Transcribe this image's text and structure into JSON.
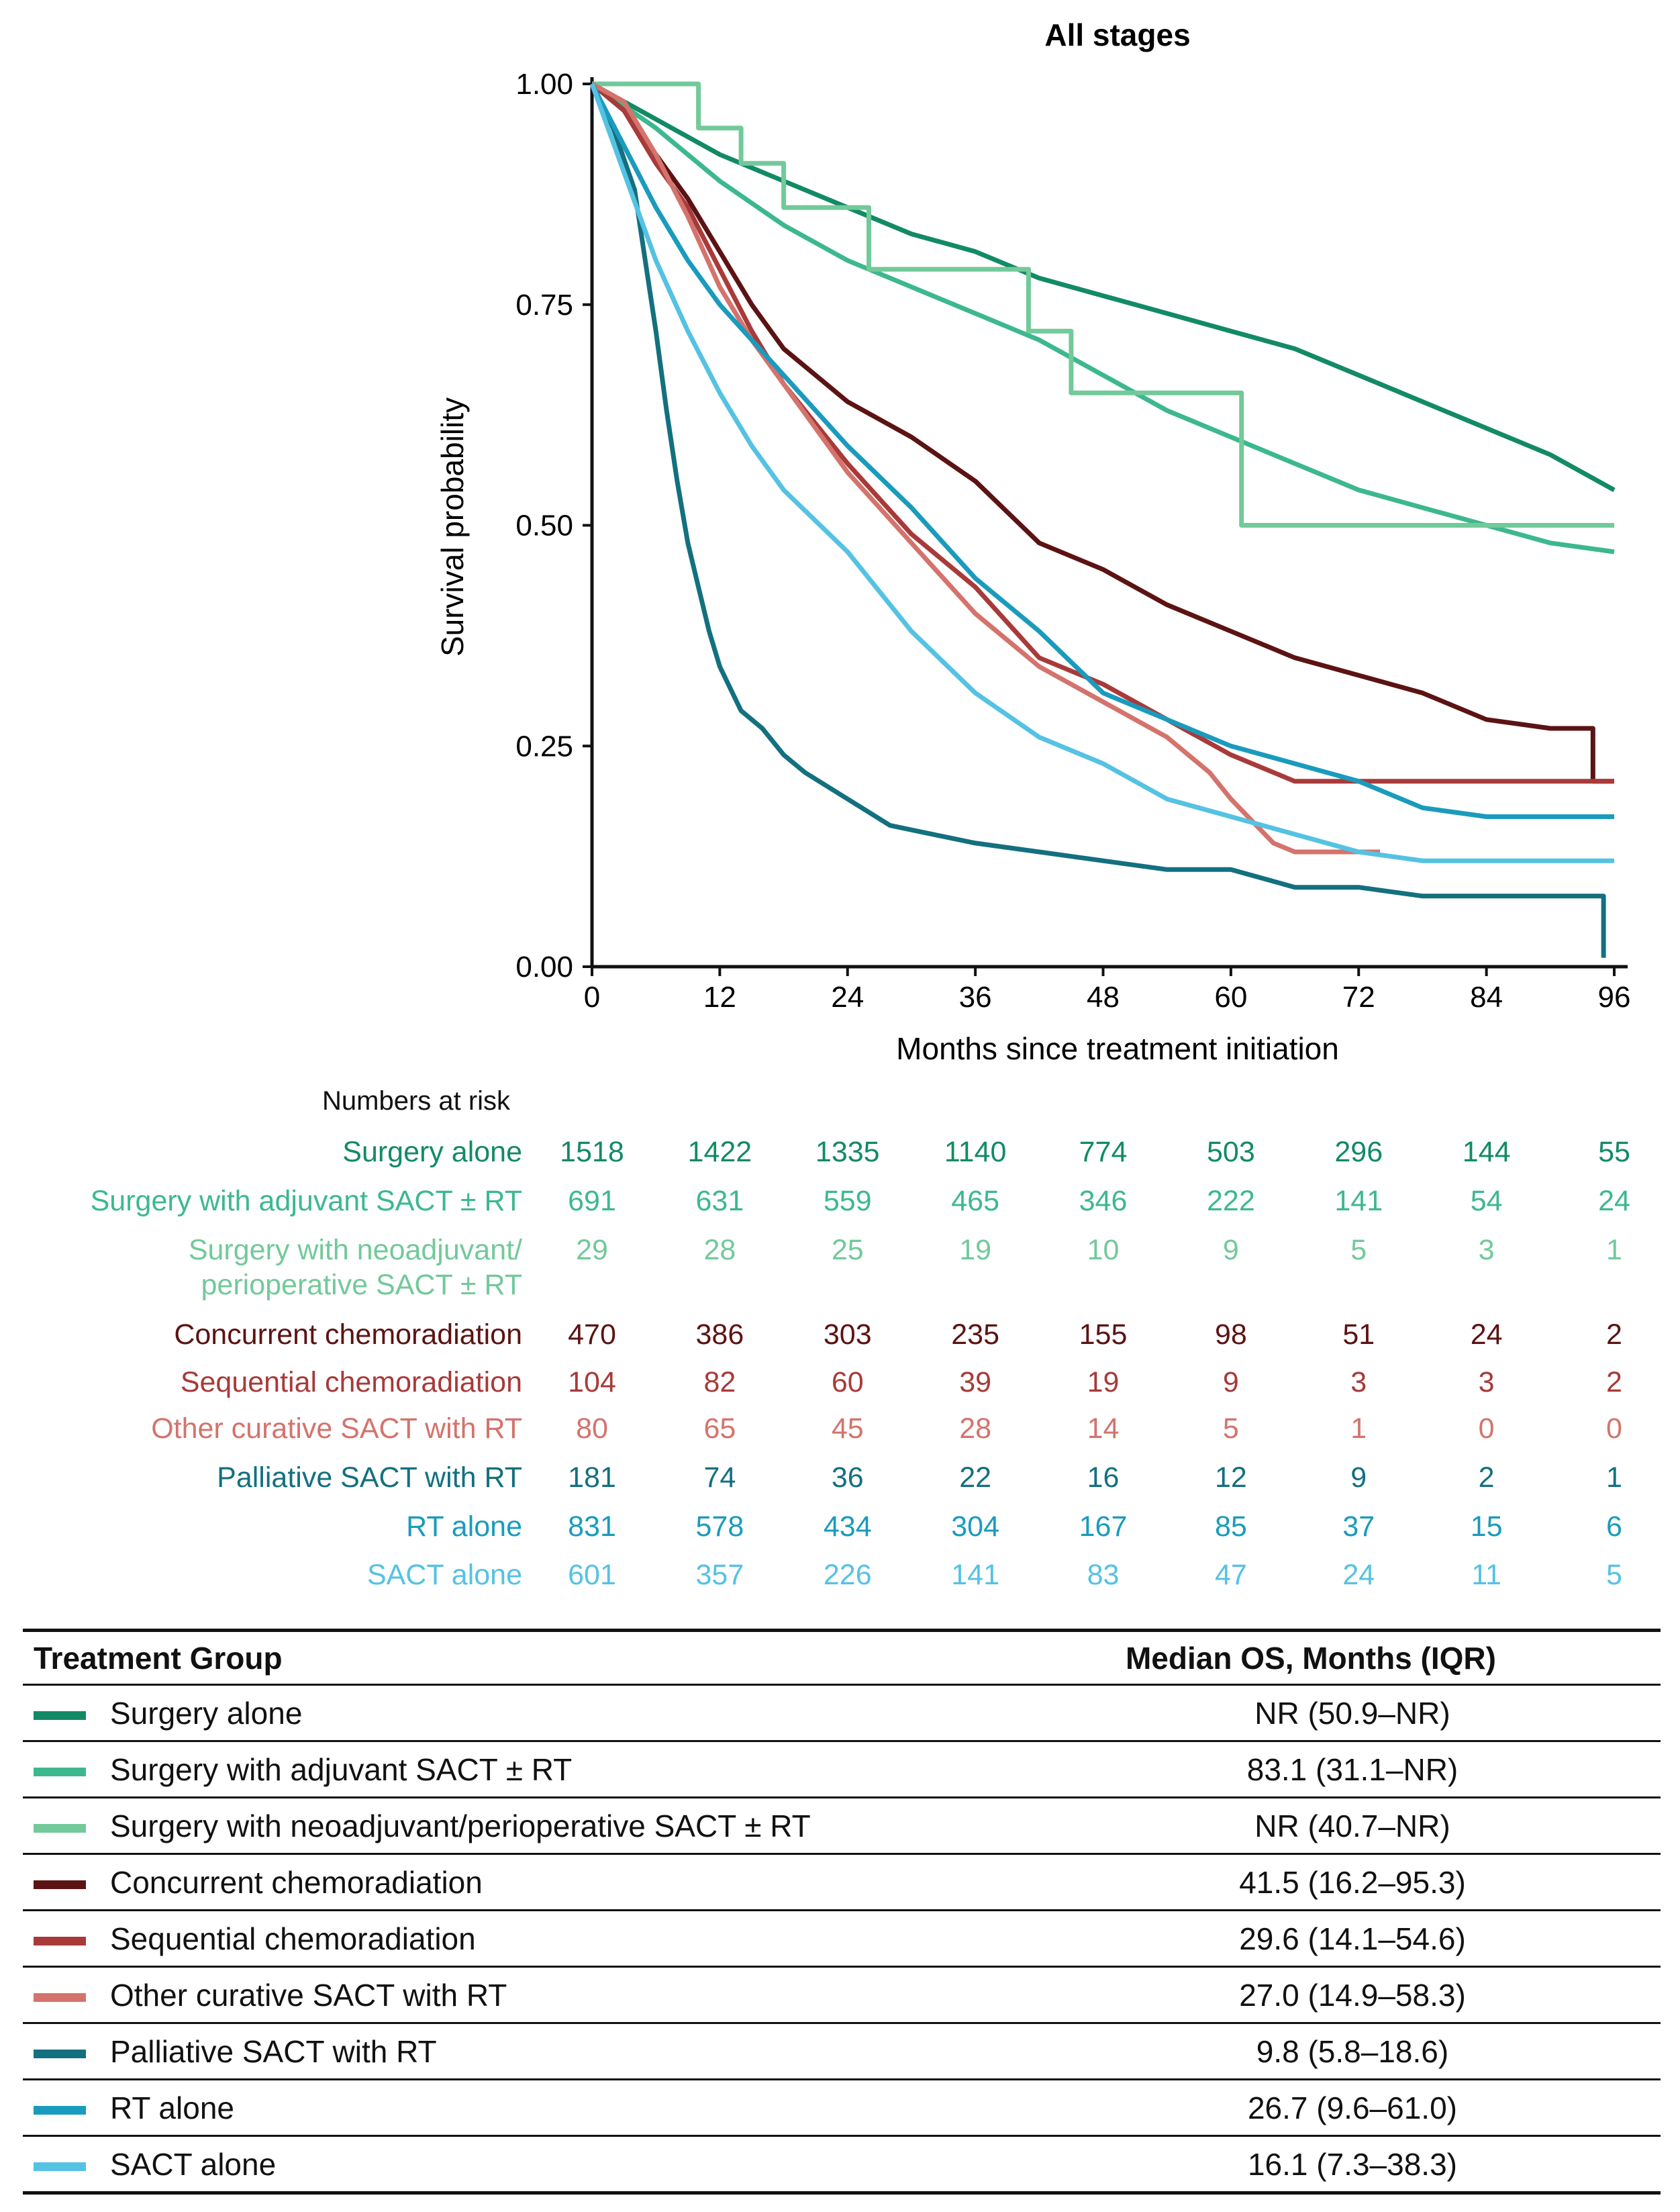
{
  "chart_data": {
    "type": "line",
    "title": "All stages",
    "xlabel": "Months since treatment initiation",
    "ylabel": "Survival probability",
    "xlim": [
      0,
      96
    ],
    "ylim": [
      0,
      1
    ],
    "x_ticks": [
      "0",
      "12",
      "24",
      "36",
      "48",
      "60",
      "72",
      "84",
      "96"
    ],
    "y_ticks": [
      "0.00",
      "0.25",
      "0.50",
      "0.75",
      "1.00"
    ],
    "series": [
      {
        "name": "Surgery alone",
        "color": "#138a66",
        "step": false,
        "points": [
          [
            0,
            1
          ],
          [
            6,
            0.96
          ],
          [
            12,
            0.92
          ],
          [
            18,
            0.89
          ],
          [
            24,
            0.86
          ],
          [
            30,
            0.83
          ],
          [
            36,
            0.81
          ],
          [
            42,
            0.78
          ],
          [
            48,
            0.76
          ],
          [
            54,
            0.74
          ],
          [
            60,
            0.72
          ],
          [
            66,
            0.7
          ],
          [
            72,
            0.67
          ],
          [
            78,
            0.64
          ],
          [
            84,
            0.61
          ],
          [
            90,
            0.58
          ],
          [
            96,
            0.54
          ]
        ]
      },
      {
        "name": "Surgery with adjuvant SACT ± RT",
        "color": "#3db88e",
        "step": false,
        "points": [
          [
            0,
            1
          ],
          [
            6,
            0.95
          ],
          [
            12,
            0.89
          ],
          [
            18,
            0.84
          ],
          [
            24,
            0.8
          ],
          [
            30,
            0.77
          ],
          [
            36,
            0.74
          ],
          [
            42,
            0.71
          ],
          [
            48,
            0.67
          ],
          [
            54,
            0.63
          ],
          [
            60,
            0.6
          ],
          [
            66,
            0.57
          ],
          [
            72,
            0.54
          ],
          [
            78,
            0.52
          ],
          [
            84,
            0.5
          ],
          [
            90,
            0.48
          ],
          [
            96,
            0.47
          ]
        ]
      },
      {
        "name": "Surgery with neoadjuvant/perioperative SACT ± RT",
        "color": "#72c99a",
        "step": true,
        "points": [
          [
            0,
            1
          ],
          [
            10,
            1
          ],
          [
            10,
            0.95
          ],
          [
            14,
            0.95
          ],
          [
            14,
            0.91
          ],
          [
            18,
            0.91
          ],
          [
            18,
            0.86
          ],
          [
            26,
            0.86
          ],
          [
            26,
            0.79
          ],
          [
            41,
            0.79
          ],
          [
            41,
            0.72
          ],
          [
            45,
            0.72
          ],
          [
            45,
            0.65
          ],
          [
            61,
            0.65
          ],
          [
            61,
            0.5
          ],
          [
            96,
            0.5
          ]
        ]
      },
      {
        "name": "Concurrent chemoradiation",
        "color": "#5c1313",
        "step": false,
        "points": [
          [
            0,
            1
          ],
          [
            3,
            0.97
          ],
          [
            6,
            0.92
          ],
          [
            9,
            0.87
          ],
          [
            12,
            0.81
          ],
          [
            15,
            0.75
          ],
          [
            18,
            0.7
          ],
          [
            24,
            0.64
          ],
          [
            30,
            0.6
          ],
          [
            36,
            0.55
          ],
          [
            42,
            0.48
          ],
          [
            48,
            0.45
          ],
          [
            54,
            0.41
          ],
          [
            60,
            0.38
          ],
          [
            66,
            0.35
          ],
          [
            72,
            0.33
          ],
          [
            78,
            0.31
          ],
          [
            84,
            0.28
          ],
          [
            90,
            0.27
          ],
          [
            94,
            0.27
          ],
          [
            94,
            0.21
          ],
          [
            96,
            0.21
          ]
        ]
      },
      {
        "name": "Sequential chemoradiation",
        "color": "#a83a3a",
        "step": false,
        "points": [
          [
            0,
            1
          ],
          [
            3,
            0.97
          ],
          [
            6,
            0.91
          ],
          [
            9,
            0.86
          ],
          [
            12,
            0.79
          ],
          [
            15,
            0.72
          ],
          [
            18,
            0.66
          ],
          [
            24,
            0.57
          ],
          [
            30,
            0.49
          ],
          [
            36,
            0.43
          ],
          [
            42,
            0.35
          ],
          [
            48,
            0.32
          ],
          [
            54,
            0.28
          ],
          [
            60,
            0.24
          ],
          [
            66,
            0.21
          ],
          [
            72,
            0.21
          ],
          [
            96,
            0.21
          ]
        ]
      },
      {
        "name": "Other curative SACT with RT",
        "color": "#d4736c",
        "step": false,
        "points": [
          [
            0,
            1
          ],
          [
            3,
            0.98
          ],
          [
            6,
            0.92
          ],
          [
            9,
            0.85
          ],
          [
            12,
            0.77
          ],
          [
            15,
            0.71
          ],
          [
            18,
            0.66
          ],
          [
            24,
            0.56
          ],
          [
            30,
            0.48
          ],
          [
            36,
            0.4
          ],
          [
            42,
            0.34
          ],
          [
            48,
            0.3
          ],
          [
            54,
            0.26
          ],
          [
            58,
            0.22
          ],
          [
            60,
            0.19
          ],
          [
            64,
            0.14
          ],
          [
            66,
            0.13
          ],
          [
            74,
            0.13
          ]
        ]
      },
      {
        "name": "Palliative SACT with RT",
        "color": "#13707f",
        "step": false,
        "points": [
          [
            0,
            1
          ],
          [
            2,
            0.95
          ],
          [
            4,
            0.88
          ],
          [
            5,
            0.8
          ],
          [
            6,
            0.72
          ],
          [
            7,
            0.63
          ],
          [
            8,
            0.55
          ],
          [
            9,
            0.48
          ],
          [
            10,
            0.43
          ],
          [
            11,
            0.38
          ],
          [
            12,
            0.34
          ],
          [
            14,
            0.29
          ],
          [
            16,
            0.27
          ],
          [
            18,
            0.24
          ],
          [
            20,
            0.22
          ],
          [
            24,
            0.19
          ],
          [
            28,
            0.16
          ],
          [
            32,
            0.15
          ],
          [
            36,
            0.14
          ],
          [
            42,
            0.13
          ],
          [
            48,
            0.12
          ],
          [
            54,
            0.11
          ],
          [
            60,
            0.11
          ],
          [
            66,
            0.09
          ],
          [
            72,
            0.09
          ],
          [
            78,
            0.08
          ],
          [
            84,
            0.08
          ],
          [
            95,
            0.08
          ],
          [
            95,
            0.01
          ]
        ]
      },
      {
        "name": "RT alone",
        "color": "#1a9bbd",
        "step": false,
        "points": [
          [
            0,
            1
          ],
          [
            3,
            0.93
          ],
          [
            6,
            0.86
          ],
          [
            9,
            0.8
          ],
          [
            12,
            0.75
          ],
          [
            15,
            0.71
          ],
          [
            18,
            0.67
          ],
          [
            24,
            0.59
          ],
          [
            30,
            0.52
          ],
          [
            36,
            0.44
          ],
          [
            42,
            0.38
          ],
          [
            48,
            0.31
          ],
          [
            54,
            0.28
          ],
          [
            60,
            0.25
          ],
          [
            66,
            0.23
          ],
          [
            72,
            0.21
          ],
          [
            78,
            0.18
          ],
          [
            84,
            0.17
          ],
          [
            96,
            0.17
          ]
        ]
      },
      {
        "name": "SACT alone",
        "color": "#55c2e3",
        "step": false,
        "points": [
          [
            0,
            1
          ],
          [
            3,
            0.9
          ],
          [
            6,
            0.8
          ],
          [
            9,
            0.72
          ],
          [
            12,
            0.65
          ],
          [
            15,
            0.59
          ],
          [
            18,
            0.54
          ],
          [
            24,
            0.47
          ],
          [
            30,
            0.38
          ],
          [
            36,
            0.31
          ],
          [
            42,
            0.26
          ],
          [
            48,
            0.23
          ],
          [
            54,
            0.19
          ],
          [
            60,
            0.17
          ],
          [
            66,
            0.15
          ],
          [
            72,
            0.13
          ],
          [
            78,
            0.12
          ],
          [
            84,
            0.12
          ],
          [
            96,
            0.12
          ]
        ]
      }
    ]
  },
  "risk_table": {
    "heading": "Numbers at risk",
    "timepoints": [
      "0",
      "12",
      "24",
      "36",
      "48",
      "60",
      "72",
      "84",
      "96"
    ],
    "rows": [
      {
        "label": "Surgery alone",
        "values": [
          "1518",
          "1422",
          "1335",
          "1140",
          "774",
          "503",
          "296",
          "144",
          "55"
        ]
      },
      {
        "label": "Surgery with adjuvant SACT ± RT",
        "values": [
          "691",
          "631",
          "559",
          "465",
          "346",
          "222",
          "141",
          "54",
          "24"
        ]
      },
      {
        "label": "Surgery with neoadjuvant/",
        "label2": "perioperative SACT ± RT",
        "values": [
          "29",
          "28",
          "25",
          "19",
          "10",
          "9",
          "5",
          "3",
          "1"
        ]
      },
      {
        "label": "Concurrent chemoradiation",
        "values": [
          "470",
          "386",
          "303",
          "235",
          "155",
          "98",
          "51",
          "24",
          "2"
        ]
      },
      {
        "label": "Sequential chemoradiation",
        "values": [
          "104",
          "82",
          "60",
          "39",
          "19",
          "9",
          "3",
          "3",
          "2"
        ]
      },
      {
        "label": "Other curative SACT with RT",
        "values": [
          "80",
          "65",
          "45",
          "28",
          "14",
          "5",
          "1",
          "0",
          "0"
        ]
      },
      {
        "label": "Palliative SACT with RT",
        "values": [
          "181",
          "74",
          "36",
          "22",
          "16",
          "12",
          "9",
          "2",
          "1"
        ]
      },
      {
        "label": "RT alone",
        "values": [
          "831",
          "578",
          "434",
          "304",
          "167",
          "85",
          "37",
          "15",
          "6"
        ]
      },
      {
        "label": "SACT alone",
        "values": [
          "601",
          "357",
          "226",
          "141",
          "83",
          "47",
          "24",
          "11",
          "5"
        ]
      }
    ]
  },
  "os_table": {
    "headers": {
      "group": "Treatment Group",
      "median": "Median OS, Months (IQR)"
    },
    "rows": [
      {
        "group": "Surgery alone",
        "median": "NR (50.9–NR)"
      },
      {
        "group": "Surgery with adjuvant SACT ± RT",
        "median": "83.1 (31.1–NR)"
      },
      {
        "group": "Surgery with neoadjuvant/perioperative SACT ± RT",
        "median": "NR (40.7–NR)"
      },
      {
        "group": "Concurrent chemoradiation",
        "median": "41.5 (16.2–95.3)"
      },
      {
        "group": "Sequential chemoradiation",
        "median": "29.6 (14.1–54.6)"
      },
      {
        "group": "Other curative SACT with RT",
        "median": "27.0 (14.9–58.3)"
      },
      {
        "group": "Palliative SACT with RT",
        "median": "9.8 (5.8–18.6)"
      },
      {
        "group": "RT alone",
        "median": "26.7 (9.6–61.0)"
      },
      {
        "group": "SACT alone",
        "median": "16.1 (7.3–38.3)"
      }
    ]
  }
}
